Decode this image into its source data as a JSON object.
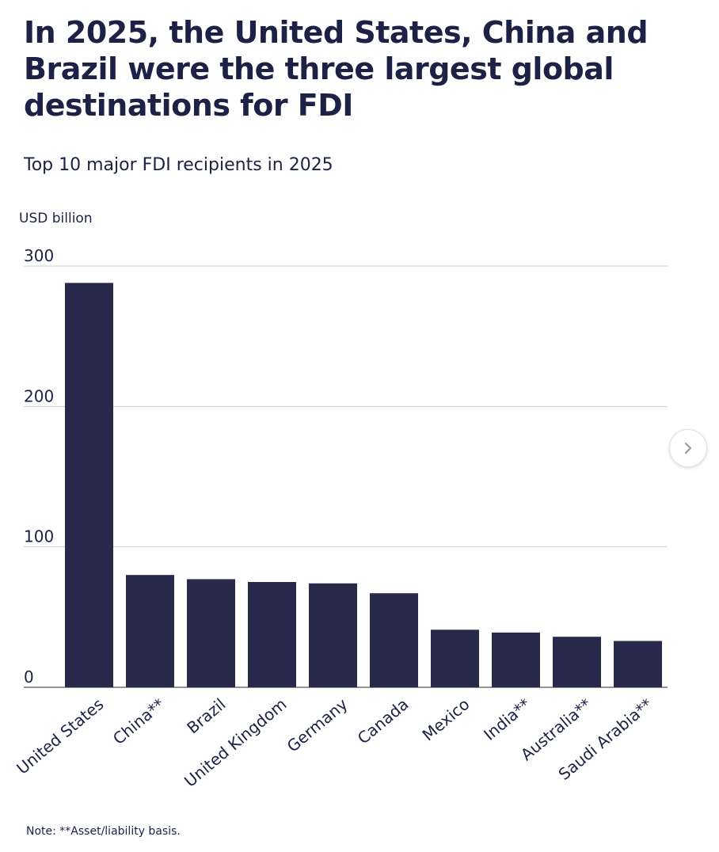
{
  "header": {
    "title": "In 2025, the United States, China and Brazil were the three largest global destinations for FDI",
    "subtitle": "Top 10 major FDI recipients in 2025",
    "unit_label": "USD billion",
    "note": "Note: **Asset/liability basis."
  },
  "nav": {
    "next_icon": "chevron-right-icon"
  },
  "colors": {
    "bar": "#282a4c",
    "text": "#1c2146",
    "grid": "#d0d0d0",
    "axis": "#555555"
  },
  "chart_data": {
    "type": "bar",
    "title": "In 2025, the United States, China and Brazil were the three largest global destinations for FDI",
    "subtitle": "Top 10 major FDI recipients in 2025",
    "ylabel": "USD billion",
    "xlabel": "",
    "categories": [
      "United States",
      "China**",
      "Brazil",
      "United Kingdom",
      "Germany",
      "Canada",
      "Mexico",
      "India**",
      "Australia**",
      "Saudi Arabia**"
    ],
    "values": [
      288,
      80,
      77,
      75,
      74,
      67,
      41,
      39,
      36,
      33
    ],
    "ylim": [
      0,
      300
    ],
    "yticks": [
      0,
      100,
      200,
      300
    ],
    "grid": true,
    "legend": "none"
  }
}
